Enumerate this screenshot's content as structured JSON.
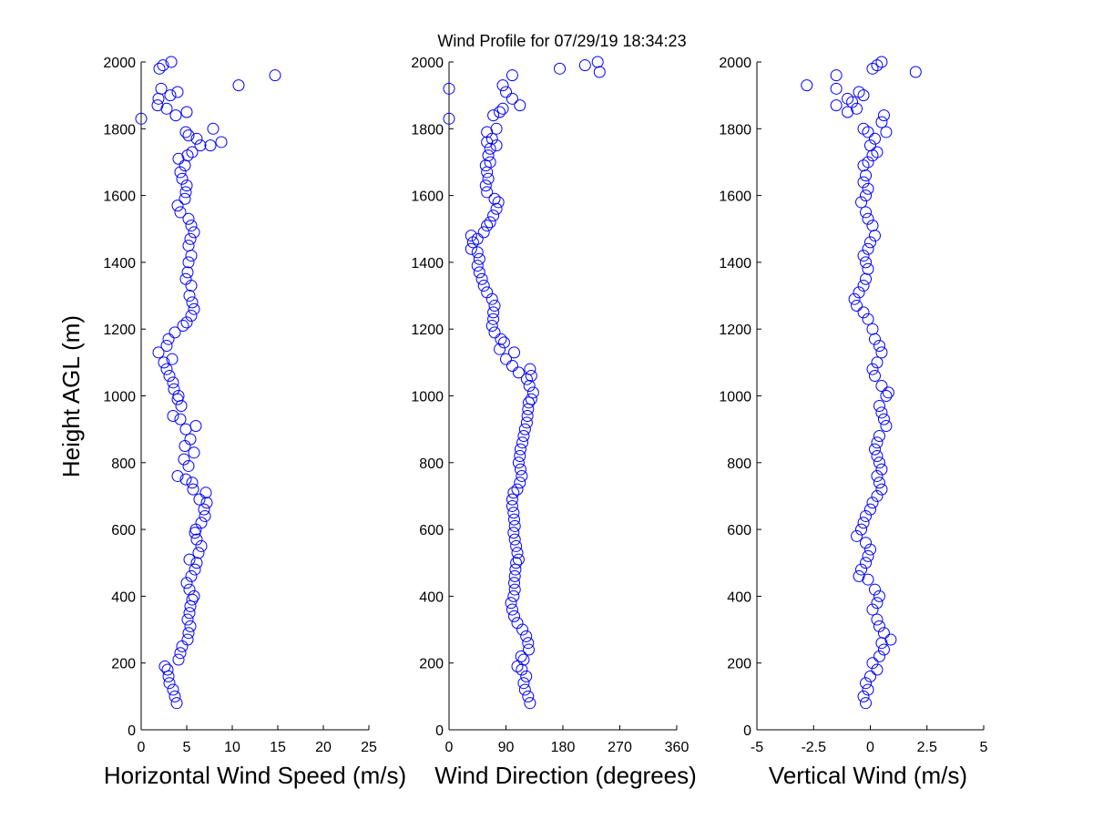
{
  "title": "Wind Profile for  07/29/19 18:34:23",
  "marker_color": "#0000ff",
  "chart_data": [
    {
      "type": "scatter",
      "xlabel": "Horizontal Wind Speed (m/s)",
      "ylabel": "Height AGL (m)",
      "xlim": [
        0,
        25
      ],
      "ylim": [
        0,
        2000
      ],
      "xticks": [
        0,
        5,
        10,
        15,
        20,
        25
      ],
      "xtick_labels": [
        "0",
        "5",
        "10",
        "15",
        "20",
        "25"
      ],
      "yticks": [
        0,
        200,
        400,
        600,
        800,
        1000,
        1200,
        1400,
        1600,
        1800,
        2000
      ],
      "ytick_labels": [
        "0",
        "200",
        "400",
        "600",
        "800",
        "1000",
        "1200",
        "1400",
        "1600",
        "1800",
        "2000"
      ],
      "points": [
        [
          3.9,
          80
        ],
        [
          3.7,
          100
        ],
        [
          3.5,
          120
        ],
        [
          3.1,
          140
        ],
        [
          3.0,
          160
        ],
        [
          2.9,
          180
        ],
        [
          2.6,
          190
        ],
        [
          4.1,
          210
        ],
        [
          4.3,
          230
        ],
        [
          4.5,
          250
        ],
        [
          5.1,
          270
        ],
        [
          5.2,
          290
        ],
        [
          5.4,
          310
        ],
        [
          5.1,
          330
        ],
        [
          5.3,
          350
        ],
        [
          5.4,
          370
        ],
        [
          5.6,
          390
        ],
        [
          5.8,
          400
        ],
        [
          5.3,
          420
        ],
        [
          5.0,
          440
        ],
        [
          5.5,
          460
        ],
        [
          5.9,
          480
        ],
        [
          6.1,
          500
        ],
        [
          5.3,
          510
        ],
        [
          6.3,
          530
        ],
        [
          6.6,
          550
        ],
        [
          6.1,
          570
        ],
        [
          5.9,
          590
        ],
        [
          6.0,
          600
        ],
        [
          6.6,
          620
        ],
        [
          7.0,
          640
        ],
        [
          6.9,
          660
        ],
        [
          7.2,
          680
        ],
        [
          6.4,
          690
        ],
        [
          7.1,
          710
        ],
        [
          5.7,
          720
        ],
        [
          5.6,
          740
        ],
        [
          4.9,
          750
        ],
        [
          4.0,
          760
        ],
        [
          5.2,
          790
        ],
        [
          4.7,
          810
        ],
        [
          5.8,
          830
        ],
        [
          4.8,
          850
        ],
        [
          5.4,
          870
        ],
        [
          4.9,
          900
        ],
        [
          6.0,
          910
        ],
        [
          4.3,
          930
        ],
        [
          3.5,
          940
        ],
        [
          4.4,
          970
        ],
        [
          4.0,
          990
        ],
        [
          4.1,
          1000
        ],
        [
          3.6,
          1020
        ],
        [
          3.5,
          1040
        ],
        [
          3.1,
          1060
        ],
        [
          2.8,
          1080
        ],
        [
          2.5,
          1100
        ],
        [
          3.4,
          1110
        ],
        [
          1.9,
          1130
        ],
        [
          2.8,
          1150
        ],
        [
          3.0,
          1170
        ],
        [
          3.7,
          1190
        ],
        [
          4.6,
          1210
        ],
        [
          5.0,
          1220
        ],
        [
          5.5,
          1240
        ],
        [
          5.8,
          1260
        ],
        [
          5.6,
          1280
        ],
        [
          5.3,
          1300
        ],
        [
          5.5,
          1330
        ],
        [
          4.9,
          1350
        ],
        [
          5.1,
          1370
        ],
        [
          5.2,
          1400
        ],
        [
          5.5,
          1420
        ],
        [
          5.2,
          1450
        ],
        [
          5.4,
          1470
        ],
        [
          5.8,
          1490
        ],
        [
          5.5,
          1510
        ],
        [
          5.2,
          1530
        ],
        [
          4.3,
          1550
        ],
        [
          4.0,
          1570
        ],
        [
          4.8,
          1590
        ],
        [
          4.9,
          1610
        ],
        [
          5.0,
          1630
        ],
        [
          4.5,
          1650
        ],
        [
          4.3,
          1670
        ],
        [
          4.8,
          1690
        ],
        [
          4.1,
          1710
        ],
        [
          5.1,
          1720
        ],
        [
          5.6,
          1730
        ],
        [
          6.5,
          1750
        ],
        [
          6.1,
          1770
        ],
        [
          5.2,
          1780
        ],
        [
          4.9,
          1790
        ],
        [
          8.8,
          1760
        ],
        [
          7.6,
          1750
        ],
        [
          7.9,
          1800
        ],
        [
          3.8,
          1840
        ],
        [
          2.8,
          1860
        ],
        [
          5.0,
          1850
        ],
        [
          1.8,
          1870
        ],
        [
          1.9,
          1890
        ],
        [
          2.2,
          1920
        ],
        [
          3.2,
          1900
        ],
        [
          4.0,
          1910
        ],
        [
          0.0,
          1830
        ],
        [
          10.7,
          1930
        ],
        [
          14.7,
          1960
        ],
        [
          2.0,
          1980
        ],
        [
          2.4,
          1990
        ],
        [
          3.3,
          2000
        ]
      ]
    },
    {
      "type": "scatter",
      "xlabel": "Wind Direction (degrees)",
      "ylabel": "",
      "xlim": [
        0,
        360
      ],
      "ylim": [
        0,
        2000
      ],
      "xticks": [
        0,
        90,
        180,
        270,
        360
      ],
      "xtick_labels": [
        "0",
        "90",
        "180",
        "270",
        "360"
      ],
      "yticks": [
        0,
        200,
        400,
        600,
        800,
        1000,
        1200,
        1400,
        1600,
        1800,
        2000
      ],
      "ytick_labels": [
        "0",
        "200",
        "400",
        "600",
        "800",
        "1000",
        "1200",
        "1400",
        "1600",
        "1800",
        "2000"
      ],
      "points": [
        [
          128,
          80
        ],
        [
          125,
          100
        ],
        [
          120,
          120
        ],
        [
          118,
          140
        ],
        [
          122,
          160
        ],
        [
          115,
          180
        ],
        [
          108,
          190
        ],
        [
          118,
          210
        ],
        [
          114,
          220
        ],
        [
          126,
          240
        ],
        [
          125,
          260
        ],
        [
          122,
          280
        ],
        [
          116,
          300
        ],
        [
          108,
          320
        ],
        [
          103,
          340
        ],
        [
          100,
          360
        ],
        [
          98,
          380
        ],
        [
          102,
          400
        ],
        [
          104,
          420
        ],
        [
          103,
          440
        ],
        [
          104,
          460
        ],
        [
          105,
          480
        ],
        [
          106,
          500
        ],
        [
          110,
          510
        ],
        [
          108,
          530
        ],
        [
          106,
          550
        ],
        [
          104,
          570
        ],
        [
          102,
          590
        ],
        [
          104,
          610
        ],
        [
          103,
          630
        ],
        [
          102,
          650
        ],
        [
          100,
          670
        ],
        [
          100,
          690
        ],
        [
          102,
          710
        ],
        [
          108,
          720
        ],
        [
          112,
          740
        ],
        [
          115,
          760
        ],
        [
          113,
          780
        ],
        [
          110,
          800
        ],
        [
          112,
          820
        ],
        [
          113,
          840
        ],
        [
          116,
          860
        ],
        [
          118,
          880
        ],
        [
          120,
          900
        ],
        [
          123,
          920
        ],
        [
          124,
          940
        ],
        [
          125,
          960
        ],
        [
          126,
          980
        ],
        [
          130,
          990
        ],
        [
          133,
          1010
        ],
        [
          127,
          1030
        ],
        [
          123,
          1050
        ],
        [
          130,
          1060
        ],
        [
          128,
          1080
        ],
        [
          110,
          1070
        ],
        [
          100,
          1090
        ],
        [
          90,
          1110
        ],
        [
          103,
          1130
        ],
        [
          80,
          1140
        ],
        [
          87,
          1160
        ],
        [
          82,
          1170
        ],
        [
          72,
          1190
        ],
        [
          68,
          1210
        ],
        [
          70,
          1230
        ],
        [
          70,
          1250
        ],
        [
          72,
          1270
        ],
        [
          68,
          1290
        ],
        [
          60,
          1310
        ],
        [
          55,
          1330
        ],
        [
          52,
          1350
        ],
        [
          48,
          1370
        ],
        [
          45,
          1390
        ],
        [
          48,
          1410
        ],
        [
          45,
          1430
        ],
        [
          35,
          1440
        ],
        [
          38,
          1460
        ],
        [
          45,
          1470
        ],
        [
          35,
          1480
        ],
        [
          55,
          1490
        ],
        [
          60,
          1510
        ],
        [
          65,
          1520
        ],
        [
          70,
          1540
        ],
        [
          75,
          1560
        ],
        [
          78,
          1580
        ],
        [
          72,
          1590
        ],
        [
          60,
          1610
        ],
        [
          58,
          1630
        ],
        [
          62,
          1650
        ],
        [
          60,
          1670
        ],
        [
          58,
          1690
        ],
        [
          65,
          1700
        ],
        [
          62,
          1720
        ],
        [
          65,
          1740
        ],
        [
          60,
          1760
        ],
        [
          75,
          1750
        ],
        [
          68,
          1770
        ],
        [
          60,
          1790
        ],
        [
          75,
          1800
        ],
        [
          70,
          1840
        ],
        [
          80,
          1850
        ],
        [
          0,
          1830
        ],
        [
          85,
          1860
        ],
        [
          112,
          1870
        ],
        [
          100,
          1890
        ],
        [
          0,
          1920
        ],
        [
          90,
          1910
        ],
        [
          85,
          1930
        ],
        [
          100,
          1960
        ],
        [
          215,
          1990
        ],
        [
          238,
          1970
        ],
        [
          235,
          2000
        ],
        [
          175,
          1980
        ]
      ]
    },
    {
      "type": "scatter",
      "xlabel": "Vertical Wind (m/s)",
      "ylabel": "",
      "xlim": [
        -5,
        5
      ],
      "ylim": [
        0,
        2000
      ],
      "xticks": [
        -5,
        -2.5,
        0,
        2.5,
        5
      ],
      "xtick_labels": [
        "-5",
        "-2.5",
        "0",
        "2.5",
        "5"
      ],
      "yticks": [
        0,
        200,
        400,
        600,
        800,
        1000,
        1200,
        1400,
        1600,
        1800,
        2000
      ],
      "ytick_labels": [
        "0",
        "200",
        "400",
        "600",
        "800",
        "1000",
        "1200",
        "1400",
        "1600",
        "1800",
        "2000"
      ],
      "points": [
        [
          -0.2,
          80
        ],
        [
          -0.3,
          100
        ],
        [
          -0.1,
          120
        ],
        [
          -0.2,
          140
        ],
        [
          0.0,
          160
        ],
        [
          0.3,
          180
        ],
        [
          0.1,
          200
        ],
        [
          0.4,
          220
        ],
        [
          0.6,
          240
        ],
        [
          0.5,
          260
        ],
        [
          0.9,
          270
        ],
        [
          0.6,
          290
        ],
        [
          0.4,
          310
        ],
        [
          0.3,
          330
        ],
        [
          0.1,
          360
        ],
        [
          0.3,
          380
        ],
        [
          0.4,
          400
        ],
        [
          0.2,
          420
        ],
        [
          -0.1,
          450
        ],
        [
          -0.5,
          460
        ],
        [
          -0.4,
          480
        ],
        [
          -0.2,
          500
        ],
        [
          -0.1,
          520
        ],
        [
          0.0,
          540
        ],
        [
          -0.2,
          560
        ],
        [
          -0.6,
          580
        ],
        [
          -0.4,
          600
        ],
        [
          -0.3,
          620
        ],
        [
          -0.2,
          640
        ],
        [
          0.0,
          660
        ],
        [
          0.1,
          680
        ],
        [
          0.3,
          700
        ],
        [
          0.5,
          720
        ],
        [
          0.4,
          740
        ],
        [
          0.3,
          760
        ],
        [
          0.5,
          780
        ],
        [
          0.4,
          800
        ],
        [
          0.3,
          820
        ],
        [
          0.2,
          840
        ],
        [
          0.3,
          860
        ],
        [
          0.4,
          880
        ],
        [
          0.7,
          910
        ],
        [
          0.6,
          930
        ],
        [
          0.5,
          950
        ],
        [
          0.4,
          970
        ],
        [
          0.7,
          1000
        ],
        [
          0.8,
          1010
        ],
        [
          0.5,
          1030
        ],
        [
          0.2,
          1060
        ],
        [
          0.1,
          1080
        ],
        [
          0.3,
          1100
        ],
        [
          0.5,
          1130
        ],
        [
          0.4,
          1150
        ],
        [
          0.2,
          1170
        ],
        [
          0.1,
          1200
        ],
        [
          -0.1,
          1230
        ],
        [
          -0.3,
          1250
        ],
        [
          -0.6,
          1270
        ],
        [
          -0.7,
          1290
        ],
        [
          -0.5,
          1310
        ],
        [
          -0.3,
          1330
        ],
        [
          -0.2,
          1350
        ],
        [
          -0.1,
          1380
        ],
        [
          -0.2,
          1400
        ],
        [
          -0.3,
          1420
        ],
        [
          -0.1,
          1440
        ],
        [
          0.0,
          1460
        ],
        [
          0.2,
          1480
        ],
        [
          0.1,
          1510
        ],
        [
          -0.1,
          1530
        ],
        [
          -0.2,
          1550
        ],
        [
          -0.4,
          1580
        ],
        [
          -0.2,
          1600
        ],
        [
          -0.1,
          1620
        ],
        [
          -0.3,
          1640
        ],
        [
          -0.2,
          1660
        ],
        [
          -0.3,
          1690
        ],
        [
          -0.1,
          1700
        ],
        [
          0.1,
          1720
        ],
        [
          0.3,
          1730
        ],
        [
          0.0,
          1750
        ],
        [
          0.2,
          1770
        ],
        [
          -0.1,
          1790
        ],
        [
          -0.3,
          1800
        ],
        [
          0.7,
          1790
        ],
        [
          0.5,
          1820
        ],
        [
          0.6,
          1840
        ],
        [
          -0.6,
          1860
        ],
        [
          -1.0,
          1850
        ],
        [
          -1.5,
          1870
        ],
        [
          -1.0,
          1890
        ],
        [
          -0.8,
          1880
        ],
        [
          -0.3,
          1900
        ],
        [
          -0.5,
          1910
        ],
        [
          -1.5,
          1920
        ],
        [
          -2.8,
          1930
        ],
        [
          -1.5,
          1960
        ],
        [
          0.1,
          1980
        ],
        [
          0.5,
          2000
        ],
        [
          0.3,
          1990
        ],
        [
          2.0,
          1970
        ]
      ]
    }
  ]
}
